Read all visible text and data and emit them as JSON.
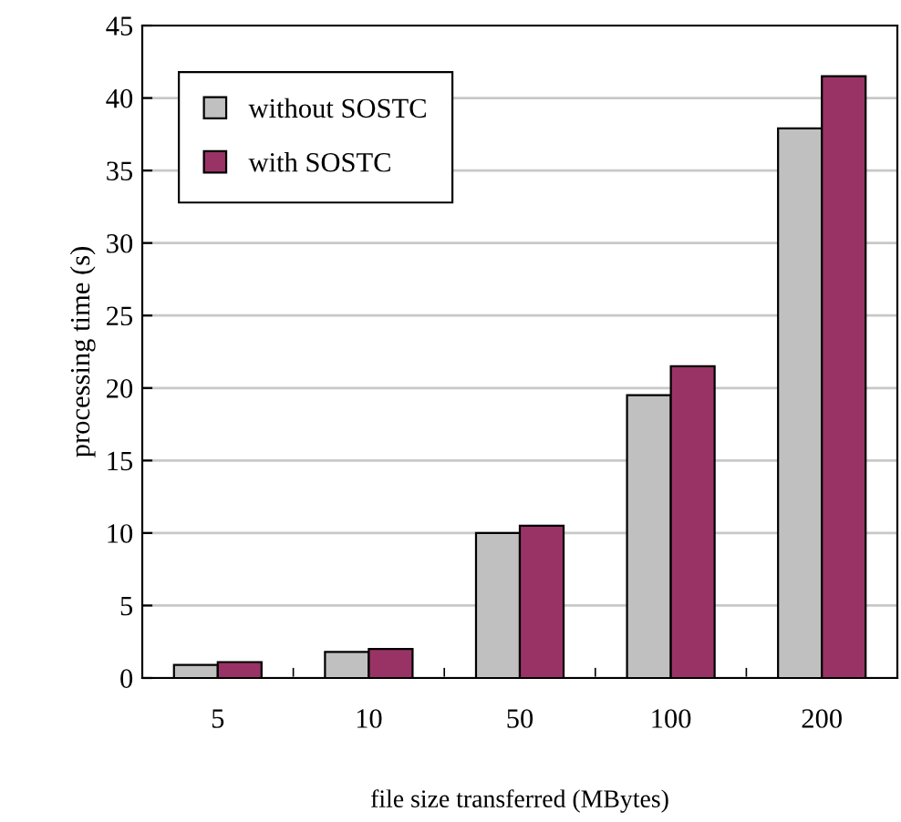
{
  "chart_data": {
    "type": "bar",
    "xlabel": "file size transferred (MBytes)",
    "ylabel": "processing time (s)",
    "categories": [
      "5",
      "10",
      "50",
      "100",
      "200"
    ],
    "series": [
      {
        "name": "without SOSTC",
        "color": "#c0c0c0",
        "values": [
          0.9,
          1.8,
          10.0,
          19.5,
          37.9
        ]
      },
      {
        "name": "with SOSTC",
        "color": "#993366",
        "values": [
          1.1,
          2.0,
          10.5,
          21.5,
          41.5
        ]
      }
    ],
    "ylim": [
      0,
      45
    ],
    "yticks": [
      0,
      5,
      10,
      15,
      20,
      25,
      30,
      35,
      40,
      45
    ],
    "grid": "y",
    "legend": "top left"
  }
}
